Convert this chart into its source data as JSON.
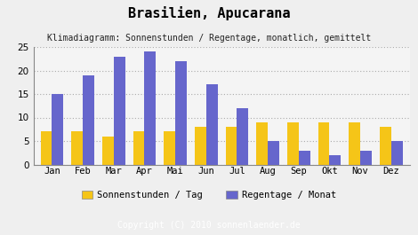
{
  "title": "Brasilien, Apucarana",
  "subtitle": "Klimadiagramm: Sonnenstunden / Regentage, monatlich, gemittelt",
  "copyright": "Copyright (C) 2010 sonnenlaender.de",
  "months": [
    "Jan",
    "Feb",
    "Mar",
    "Apr",
    "Mai",
    "Jun",
    "Jul",
    "Aug",
    "Sep",
    "Okt",
    "Nov",
    "Dez"
  ],
  "sonnenstunden": [
    7,
    7,
    6,
    7,
    7,
    8,
    8,
    9,
    9,
    9,
    9,
    8
  ],
  "regentage": [
    15,
    19,
    23,
    24,
    22,
    17,
    12,
    5,
    3,
    2,
    3,
    5
  ],
  "color_sonnen": "#f5c518",
  "color_regen": "#6666cc",
  "ylim": [
    0,
    25
  ],
  "yticks": [
    0,
    5,
    10,
    15,
    20,
    25
  ],
  "legend_sonnen": "Sonnenstunden / Tag",
  "legend_regen": "Regentage / Monat",
  "bg_color": "#efefef",
  "plot_bg": "#f4f4f4",
  "footer_bg": "#aaaaaa",
  "title_fontsize": 11,
  "subtitle_fontsize": 7,
  "axis_fontsize": 7.5,
  "legend_fontsize": 7.5,
  "copyright_fontsize": 7
}
